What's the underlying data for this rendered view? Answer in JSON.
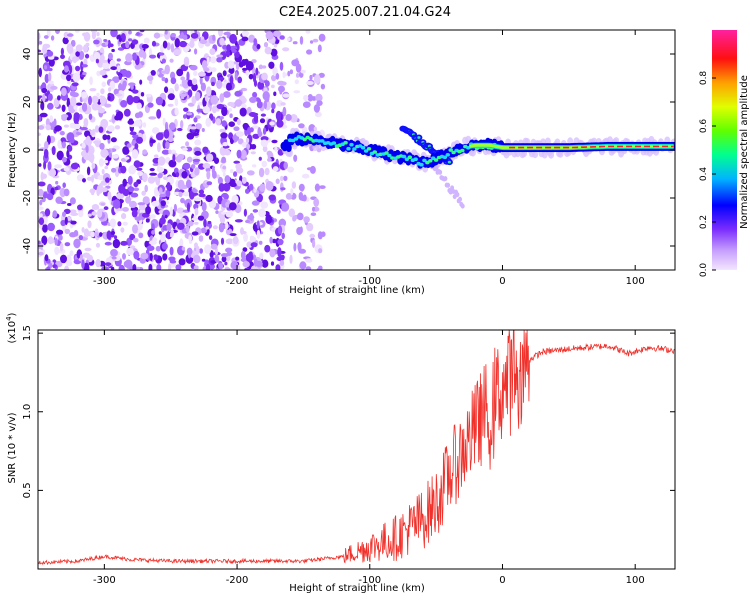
{
  "title": "C2E4.2025.007.21.04.G24",
  "chart_data": [
    {
      "type": "heatmap",
      "xlabel": "Height of straight line (km)",
      "ylabel": "Frequency (Hz)",
      "xlim": [
        -350,
        130
      ],
      "ylim": [
        -50,
        50
      ],
      "x_ticks": [
        -300,
        -200,
        -100,
        0,
        100
      ],
      "y_ticks": [
        -40,
        -20,
        0,
        20,
        40
      ],
      "colorbar": {
        "label": "Normalized spectral amplitude",
        "range": [
          0.0,
          1.0
        ],
        "ticks": [
          "0.0",
          "0.2",
          "0.4",
          "0.6",
          "0.8"
        ],
        "colors": [
          "#f4e6ff",
          "#a36cff",
          "#5a0fe0",
          "#0000ff",
          "#00c8ff",
          "#00ff80",
          "#80ff00",
          "#ffff00",
          "#ff9000",
          "#ff0000",
          "#ff20a0"
        ]
      },
      "doppler_trace": [
        [
          -160,
          5
        ],
        [
          -140,
          4
        ],
        [
          -120,
          2
        ],
        [
          -100,
          0
        ],
        [
          -85,
          -2
        ],
        [
          -70,
          -4
        ],
        [
          -60,
          -5
        ],
        [
          -50,
          -4
        ],
        [
          -40,
          -1
        ],
        [
          -30,
          1
        ],
        [
          -20,
          2
        ],
        [
          -10,
          2
        ],
        [
          0,
          1
        ],
        [
          20,
          1
        ],
        [
          50,
          1
        ],
        [
          80,
          1.5
        ],
        [
          100,
          1.5
        ],
        [
          130,
          1.5
        ]
      ]
    },
    {
      "type": "line",
      "xlabel": "Height of straight line (km)",
      "ylabel": "SNR (10 * v/v)",
      "scale_label": "(x10",
      "scale_exp": "4",
      "scale_close": ")",
      "xlim": [
        -350,
        130
      ],
      "ylim": [
        0,
        1.52
      ],
      "x_ticks": [
        -300,
        -200,
        -100,
        0,
        100
      ],
      "y_ticks": [
        "0.5",
        "1.0",
        "1.5"
      ],
      "color": "#f0302a",
      "trend": [
        [
          -350,
          0.04
        ],
        [
          -320,
          0.05
        ],
        [
          -300,
          0.08
        ],
        [
          -280,
          0.06
        ],
        [
          -250,
          0.05
        ],
        [
          -200,
          0.05
        ],
        [
          -150,
          0.05
        ],
        [
          -120,
          0.08
        ],
        [
          -100,
          0.14
        ],
        [
          -80,
          0.2
        ],
        [
          -60,
          0.32
        ],
        [
          -50,
          0.42
        ],
        [
          -40,
          0.6
        ],
        [
          -30,
          0.75
        ],
        [
          -20,
          0.9
        ],
        [
          -10,
          1.05
        ],
        [
          0,
          1.15
        ],
        [
          10,
          1.25
        ],
        [
          20,
          1.33
        ],
        [
          30,
          1.38
        ],
        [
          50,
          1.4
        ],
        [
          80,
          1.42
        ],
        [
          95,
          1.37
        ],
        [
          110,
          1.41
        ],
        [
          130,
          1.39
        ]
      ]
    }
  ]
}
